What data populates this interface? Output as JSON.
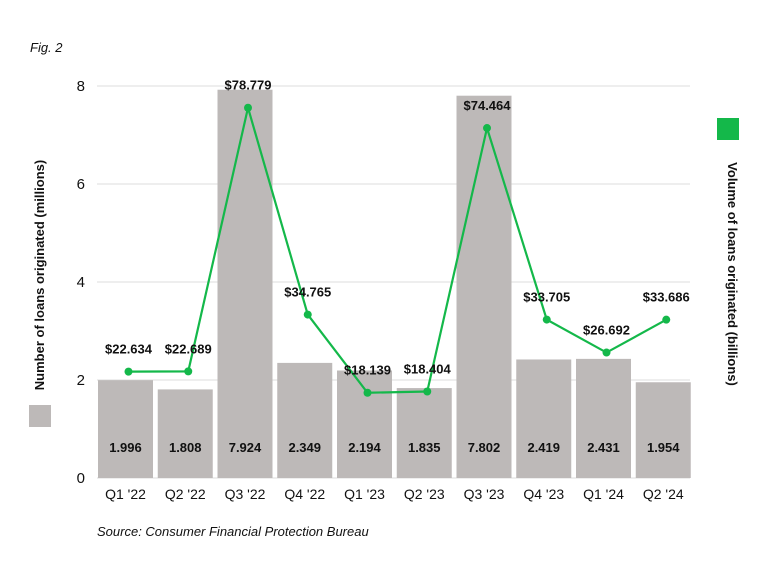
{
  "figure_label": "Fig. 2",
  "source": "Source: Consumer Financial Protection Bureau",
  "colors": {
    "bar": "#bdb9b8",
    "line": "#14b84a",
    "grid": "#dddddd"
  },
  "chart_data": {
    "type": "bar",
    "categories": [
      "Q1 '22",
      "Q2 '22",
      "Q3 '22",
      "Q4 '22",
      "Q1 '23",
      "Q2 '23",
      "Q3 '23",
      "Q4 '23",
      "Q1 '24",
      "Q2 '24"
    ],
    "series": [
      {
        "name": "Number of loans originated (millions)",
        "type": "bar",
        "axis": "left",
        "values": [
          1.996,
          1.808,
          7.924,
          2.349,
          2.194,
          1.835,
          7.802,
          2.419,
          2.431,
          1.954
        ],
        "labels": [
          "1.996",
          "1.808",
          "7.924",
          "2.349",
          "2.194",
          "1.835",
          "7.802",
          "2.419",
          "2.431",
          "1.954"
        ]
      },
      {
        "name": "Volume of loans originated (billions)",
        "type": "line",
        "axis": "right",
        "values": [
          22.634,
          22.689,
          78.779,
          34.765,
          18.139,
          18.404,
          74.464,
          33.705,
          26.692,
          33.686
        ],
        "labels": [
          "$22.634",
          "$22.689",
          "$78.779",
          "$34.765",
          "$18.139",
          "$18.404",
          "$74.464",
          "$33.705",
          "$26.692",
          "$33.686"
        ]
      }
    ],
    "ylabel": "Number of loans originated (millions)",
    "y2label": "Volume of loans originated (billions)",
    "ylim": [
      0,
      8.2
    ],
    "yticks": [
      "0",
      "2",
      "4",
      "6",
      "8"
    ],
    "y2lim": [
      0,
      84
    ],
    "grid": true,
    "legend": "left and right of plot"
  }
}
